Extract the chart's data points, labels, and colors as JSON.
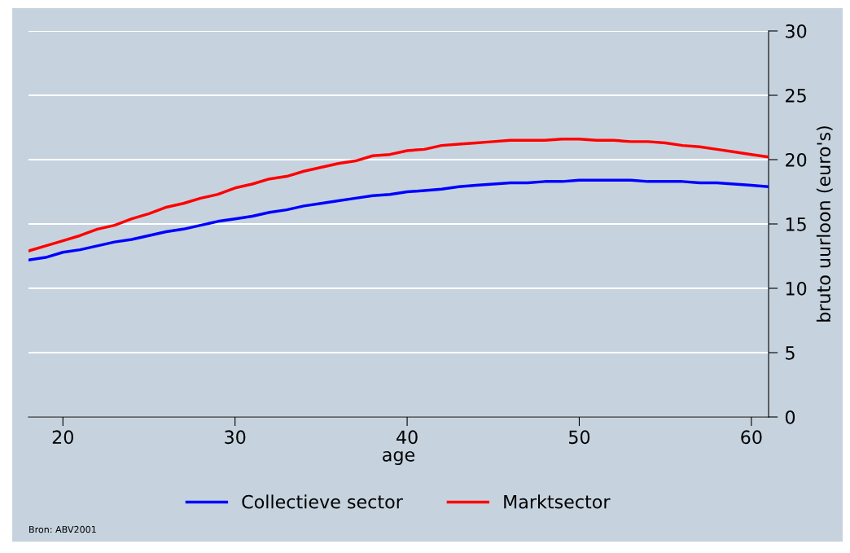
{
  "chart_data": {
    "type": "line",
    "xlabel": "age",
    "ylabel": "bruto uurloon (euro's)",
    "x": [
      18,
      19,
      20,
      21,
      22,
      23,
      24,
      25,
      26,
      27,
      28,
      29,
      30,
      31,
      32,
      33,
      34,
      35,
      36,
      37,
      38,
      39,
      40,
      41,
      42,
      43,
      44,
      45,
      46,
      47,
      48,
      49,
      50,
      51,
      52,
      53,
      54,
      55,
      56,
      57,
      58,
      59,
      60,
      61
    ],
    "series": [
      {
        "name": "Collectieve sector",
        "color": "#0000ff",
        "values": [
          12.2,
          12.4,
          12.8,
          13.0,
          13.3,
          13.6,
          13.8,
          14.1,
          14.4,
          14.6,
          14.9,
          15.2,
          15.4,
          15.6,
          15.9,
          16.1,
          16.4,
          16.6,
          16.8,
          17.0,
          17.2,
          17.3,
          17.5,
          17.6,
          17.7,
          17.9,
          18.0,
          18.1,
          18.2,
          18.2,
          18.3,
          18.3,
          18.4,
          18.4,
          18.4,
          18.4,
          18.3,
          18.3,
          18.3,
          18.2,
          18.2,
          18.1,
          18.0,
          17.9
        ]
      },
      {
        "name": "Marktsector",
        "color": "#ff0000",
        "values": [
          12.9,
          13.3,
          13.7,
          14.1,
          14.6,
          14.9,
          15.4,
          15.8,
          16.3,
          16.6,
          17.0,
          17.3,
          17.8,
          18.1,
          18.5,
          18.7,
          19.1,
          19.4,
          19.7,
          19.9,
          20.3,
          20.4,
          20.7,
          20.8,
          21.1,
          21.2,
          21.3,
          21.4,
          21.5,
          21.5,
          21.5,
          21.6,
          21.6,
          21.5,
          21.5,
          21.4,
          21.4,
          21.3,
          21.1,
          21.0,
          20.8,
          20.6,
          20.4,
          20.2
        ]
      }
    ],
    "xlim": [
      18,
      61
    ],
    "xticks": [
      20,
      30,
      40,
      50,
      60
    ],
    "ylim": [
      0,
      30
    ],
    "yticks": [
      0,
      5,
      10,
      15,
      20,
      25,
      30
    ],
    "grid": "y",
    "legend": "bottom",
    "line_style": "solid",
    "marker": "none",
    "annotations": [
      "Bron: ABV2001"
    ]
  }
}
